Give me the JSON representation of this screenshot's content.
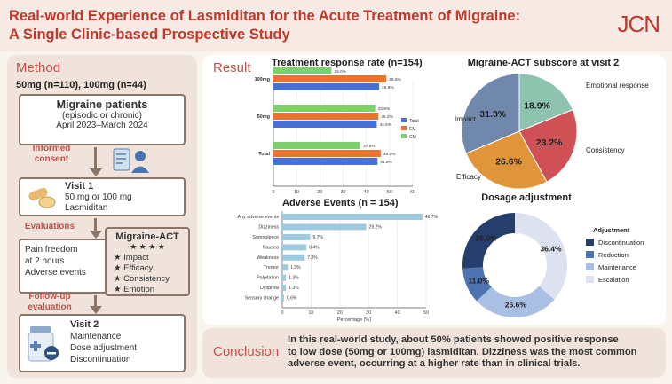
{
  "title_line1": "Real-world Experience of Lasmiditan for the Acute Treatment of Migraine:",
  "title_line2": "A Single Clinic-based Prospective Study",
  "journal": "JCN",
  "method": {
    "heading": "Method",
    "groups": "50mg (n=110), 100mg (n=44)",
    "patients_title": "Migraine patients",
    "patients_sub": "(episodic or chronic)",
    "patients_period": "April 2023–March 2024",
    "step1": "Informed",
    "step1b": "consent",
    "visit1_title": "Visit 1",
    "visit1_l1": "50 mg or 100 mg",
    "visit1_l2": "Lasmiditan",
    "step2": "Evaluations",
    "eval_l1": "Pain freedom",
    "eval_l2": "at 2 hours",
    "eval_l3": "Adverse events",
    "act_title": "Migraine-ACT",
    "act_stars": "★ ★ ★ ★",
    "act_items": [
      "★ Impact",
      "★ Efficacy",
      "★ Consistency",
      "★ Emotion"
    ],
    "step3": "Follow-up",
    "step3b": "evaluation",
    "visit2_title": "Visit 2",
    "visit2_l1": "Maintenance",
    "visit2_l2": "Dose adjustment",
    "visit2_l3": "Discontinuation"
  },
  "result": {
    "heading": "Result"
  },
  "conclusion": {
    "heading": "Conclusion",
    "line1": "In this real-world study, about 50% patients showed positive response",
    "line2": "to low dose (50mg or 100mg) lasmiditan. Dizziness was the most common",
    "line3": "adverse event, occurring at a higher rate than in clinical trials."
  },
  "colors": {
    "accent": "#c0392b",
    "brown": "#8a7568"
  },
  "chart_data": [
    {
      "type": "bar",
      "orientation": "horizontal",
      "title": "Treatment response rate (n=154)",
      "categories": [
        "100mg",
        "50mg",
        "Total"
      ],
      "series": [
        {
          "name": "Total",
          "color": "#4a6fd4",
          "values": [
            45.5,
            44.5,
            44.8
          ]
        },
        {
          "name": "EM",
          "color": "#e8742f",
          "values": [
            48.6,
            45.2,
            46.2
          ]
        },
        {
          "name": "CM",
          "color": "#7ed06f",
          "values": [
            25.0,
            43.8,
            37.5
          ]
        }
      ],
      "labels": [
        [
          "45.5%",
          "48.6%",
          "25.0%"
        ],
        [
          "44.5%",
          "45.2%",
          "43.8%"
        ],
        [
          "44.8%",
          "46.2%",
          "37.5%"
        ]
      ],
      "xticks": [
        "0",
        "10",
        "20",
        "30",
        "40",
        "50",
        "60"
      ],
      "xlim": [
        0,
        60
      ]
    },
    {
      "type": "bar",
      "orientation": "horizontal",
      "title": "Adverse Events (n = 154)",
      "xlabel": "Percentage (%)",
      "categories": [
        "Any adverse events",
        "Dizziness",
        "Somnolence",
        "Nausea",
        "Weakness",
        "Tremor",
        "Palpitation",
        "Dyspnea",
        "Sensory change"
      ],
      "values": [
        48.7,
        29.2,
        9.7,
        8.4,
        7.8,
        1.9,
        1.3,
        1.3,
        0.6
      ],
      "labels": [
        "48.7%",
        "29.2%",
        "9.7%",
        "8.4%",
        "7.8%",
        "1.9%",
        "1.3%",
        "1.3%",
        "0.6%"
      ],
      "color": "#9ecae1",
      "xticks": [
        "0",
        "10",
        "20",
        "30",
        "40",
        "50"
      ],
      "xlim": [
        0,
        50
      ]
    },
    {
      "type": "pie",
      "title": "Migraine-ACT subscore at visit 2",
      "slices": [
        {
          "name": "Emotional response",
          "value": 18.9,
          "label": "18.9%",
          "color": "#8ec3b0"
        },
        {
          "name": "Consistency",
          "value": 23.2,
          "label": "23.2%",
          "color": "#cf5156"
        },
        {
          "name": "Efficacy",
          "value": 26.6,
          "label": "26.6%",
          "color": "#e0953a"
        },
        {
          "name": "Impact",
          "value": 31.3,
          "label": "31.3%",
          "color": "#7188ad"
        }
      ]
    },
    {
      "type": "pie",
      "variant": "donut",
      "title": "Dosage adjustment",
      "legend_title": "Adjustment",
      "slices": [
        {
          "name": "Escalation",
          "value": 36.4,
          "label": "36.4%",
          "color": "#dde2f0"
        },
        {
          "name": "Maintenance",
          "value": 26.6,
          "label": "26.6%",
          "color": "#a9bfe3"
        },
        {
          "name": "Reduction",
          "value": 11.0,
          "label": "11.0%",
          "color": "#4d73b0"
        },
        {
          "name": "Discontinuation",
          "value": 26.0,
          "label": "26.0%",
          "color": "#263e6b"
        }
      ],
      "legend_order": [
        "Discontinuation",
        "Reduction",
        "Maintenance",
        "Escalation"
      ]
    }
  ]
}
